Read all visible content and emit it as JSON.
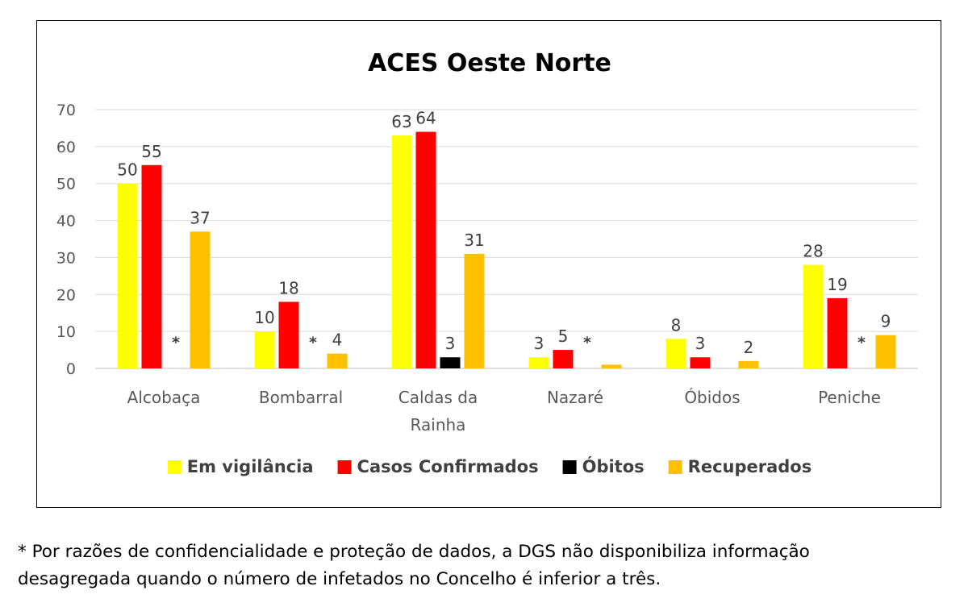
{
  "chart_data": {
    "type": "bar",
    "title": "ACES Oeste Norte",
    "xlabel": "",
    "ylabel": "",
    "ylim": [
      0,
      70
    ],
    "yticks": [
      0,
      10,
      20,
      30,
      40,
      50,
      60,
      70
    ],
    "grid": true,
    "legend_position": "bottom",
    "categories": [
      [
        "Alcobaça"
      ],
      [
        "Bombarral"
      ],
      [
        "Caldas da",
        "Rainha"
      ],
      [
        "Nazaré"
      ],
      [
        "Óbidos"
      ],
      [
        "Peniche"
      ]
    ],
    "series": [
      {
        "name": "Em vigilância",
        "color": "#ffff00",
        "values": [
          50,
          10,
          63,
          3,
          8,
          28
        ],
        "labels": [
          "50",
          "10",
          "63",
          "3",
          "8",
          "28"
        ]
      },
      {
        "name": "Casos Confirmados",
        "color": "#ff0000",
        "values": [
          55,
          18,
          64,
          5,
          3,
          19
        ],
        "labels": [
          "55",
          "18",
          "64",
          "5",
          "3",
          "19"
        ]
      },
      {
        "name": "Óbitos",
        "color": "#000000",
        "values": [
          0,
          0,
          3,
          0,
          0,
          0
        ],
        "labels": [
          "*",
          "*",
          "3",
          "*",
          "",
          "*"
        ]
      },
      {
        "name": "Recuperados",
        "color": "#ffc000",
        "values": [
          37,
          4,
          31,
          1,
          2,
          9
        ],
        "labels": [
          "37",
          "4",
          "31",
          "",
          "2",
          "9"
        ]
      }
    ]
  },
  "footnote": {
    "line1": "* Por razões de confidencialidade e proteção de dados, a DGS não disponibiliza informação",
    "line2": "desagregada quando o número de infetados no Concelho é inferior a três."
  }
}
